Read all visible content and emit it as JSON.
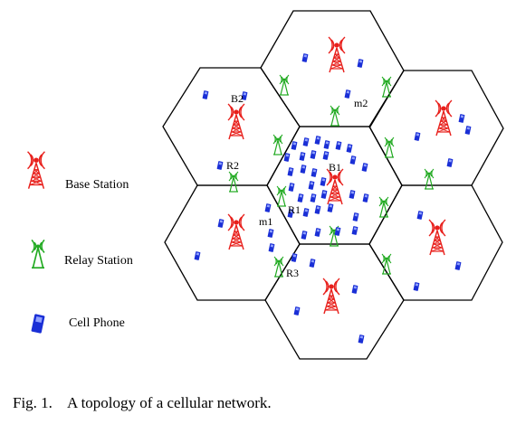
{
  "legend": {
    "base_station": "Base Station",
    "relay_station": "Relay Station",
    "cell_phone": "Cell Phone"
  },
  "labels": {
    "b1": "B1",
    "b2": "B2",
    "r1": "R1",
    "r2": "R2",
    "r3": "R3",
    "m1": "m1",
    "m2": "m2"
  },
  "caption": {
    "fig": "Fig. 1.",
    "text": "A topology of a cellular network."
  },
  "colors": {
    "base_station": "#e8201c",
    "relay_station": "#22aa22",
    "cell_phone": "#1a2fd6",
    "cell_border": "#000000"
  },
  "icons": {
    "base_station": "base-station-tower-icon",
    "relay_station": "relay-antenna-icon",
    "cell_phone": "cell-phone-icon"
  }
}
